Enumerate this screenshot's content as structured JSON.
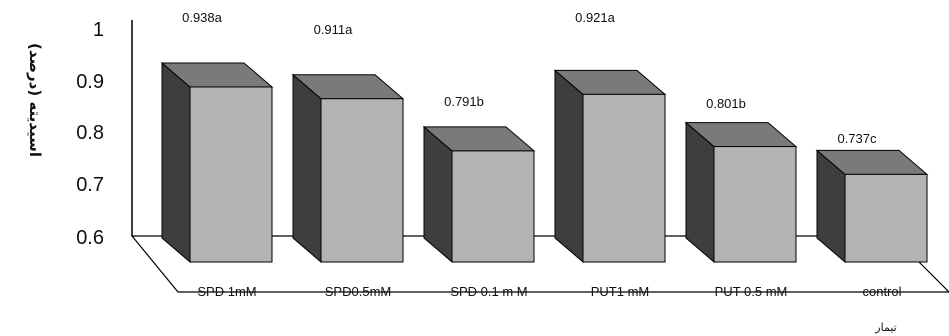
{
  "chart_data": {
    "type": "bar",
    "style": "3d-column",
    "categories": [
      "SPD  1mM",
      "SPD0.5mM",
      "SPD 0.1 m M",
      "PUT1 mM",
      "PUT 0.5 mM",
      "control"
    ],
    "values": [
      0.938,
      0.911,
      0.791,
      0.921,
      0.801,
      0.737
    ],
    "data_labels": [
      "0.938a",
      "0.911a",
      "0.791b",
      "0.921a",
      "0.801b",
      "0.737c"
    ],
    "ylabel": "اسیدیته (درصد)",
    "xlabel": "تیمار",
    "y_ticks": [
      "1",
      "0.9",
      "0.8",
      "0.7",
      "0.6"
    ],
    "ylim": [
      0.6,
      1.0
    ],
    "grid": false,
    "colors": {
      "front": "#b3b3b3",
      "top": "#7a7a7a",
      "side": "#3e3e3e",
      "axis": "#000000",
      "floor": "#ffffff"
    }
  }
}
